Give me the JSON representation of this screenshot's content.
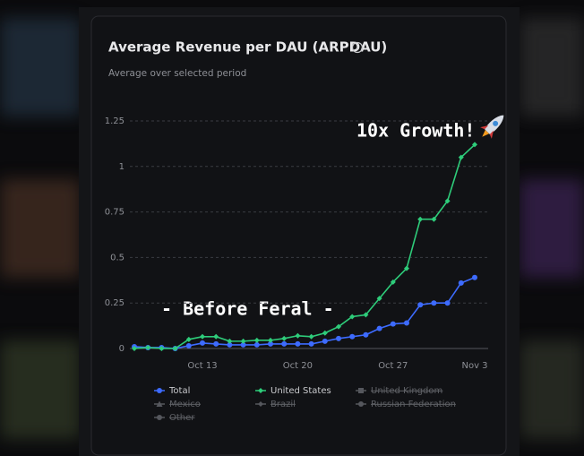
{
  "chart_data": {
    "type": "line",
    "title": "Average Revenue per DAU (ARPDAU)",
    "subtitle": "Average over selected period",
    "categories": [
      null,
      null,
      null,
      null,
      null,
      "Oct 13",
      null,
      null,
      null,
      null,
      null,
      null,
      "Oct 20",
      null,
      null,
      null,
      null,
      null,
      null,
      "Oct 27",
      null,
      null,
      null,
      null,
      null,
      "Nov 3"
    ],
    "series": [
      {
        "name": "Total",
        "color": "#3d6bff",
        "values": [
          0.01,
          0.005,
          0.005,
          0,
          0.015,
          0.03,
          0.025,
          0.02,
          0.02,
          0.02,
          0.025,
          0.025,
          0.025,
          0.025,
          0.04,
          0.055,
          0.065,
          0.075,
          0.11,
          0.135,
          0.14,
          0.24,
          0.25,
          0.25,
          0.36,
          0.39
        ]
      },
      {
        "name": "United States",
        "color": "#2ecc7a",
        "values": [
          0,
          0.005,
          0,
          0,
          0.05,
          0.065,
          0.065,
          0.04,
          0.04,
          0.045,
          0.045,
          0.055,
          0.07,
          0.065,
          0.085,
          0.12,
          0.175,
          0.185,
          0.275,
          0.365,
          0.44,
          0.71,
          0.71,
          0.81,
          1.05,
          1.12
        ]
      }
    ],
    "legend_hidden": [
      "United Kingdom",
      "Mexico",
      "Brazil",
      "Russian Federation",
      "Other"
    ],
    "ylim": [
      0,
      1.25
    ],
    "yticks": [
      0,
      0.25,
      0.5,
      0.75,
      1,
      1.25
    ],
    "grid": true,
    "annotations": [
      "10x Growth!",
      "- Before Feral -"
    ]
  }
}
